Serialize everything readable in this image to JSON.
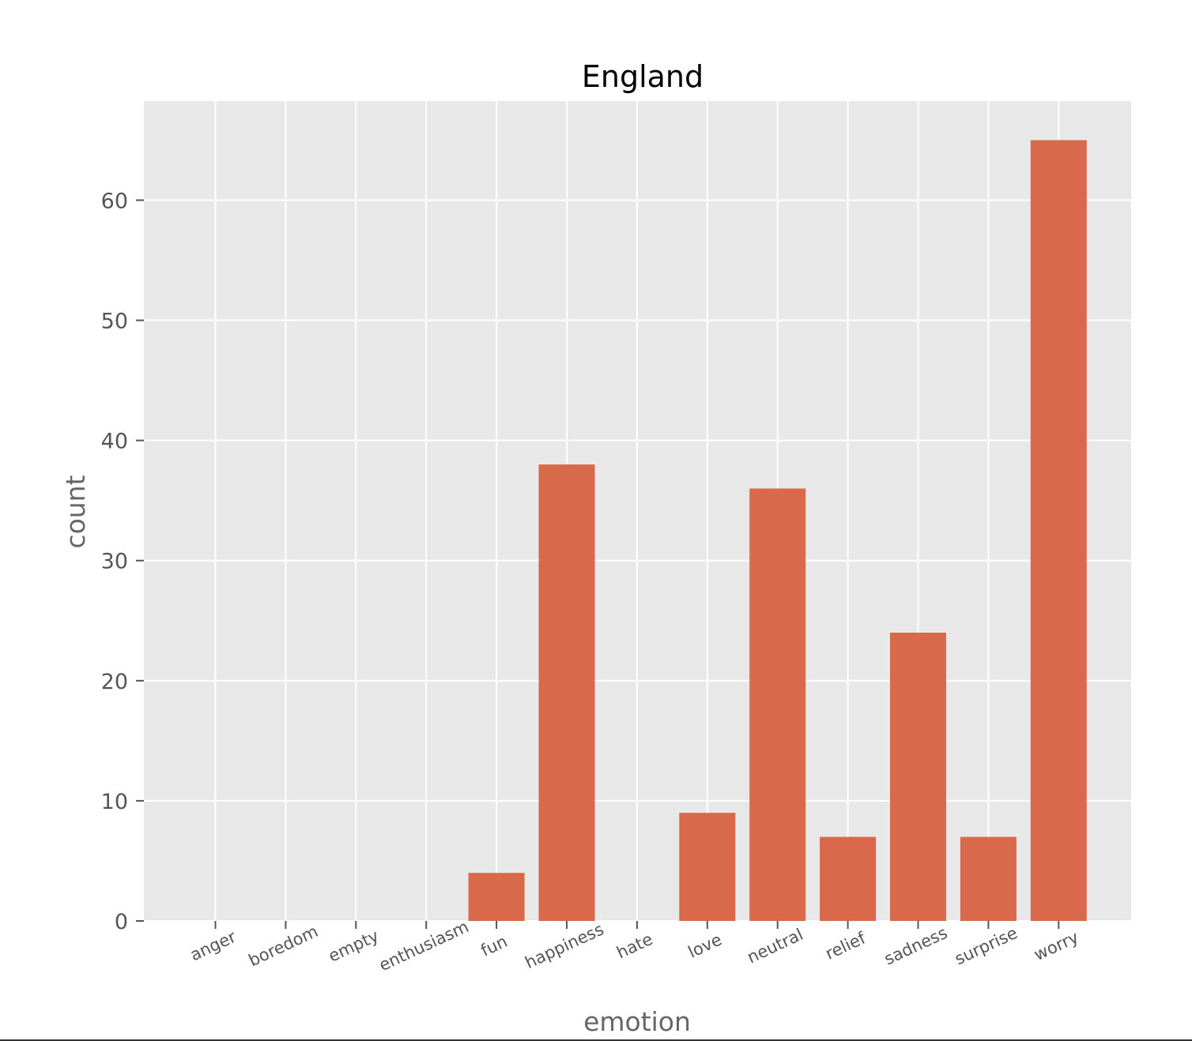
{
  "chart_data": {
    "type": "bar",
    "title": "England",
    "xlabel": "emotion",
    "ylabel": "count",
    "categories": [
      "anger",
      "boredom",
      "empty",
      "enthusiasm",
      "fun",
      "happiness",
      "hate",
      "love",
      "neutral",
      "relief",
      "sadness",
      "surprise",
      "worry"
    ],
    "values": [
      0,
      0,
      0,
      0,
      4,
      38,
      0,
      9,
      36,
      7,
      24,
      7,
      65
    ],
    "ylim": [
      0,
      68.25
    ],
    "yticks": [
      0,
      10,
      20,
      30,
      40,
      50,
      60
    ],
    "grid": true,
    "style": "ggplot",
    "colors": {
      "bar": "#d9694b",
      "plot_background": "#e8e8e8",
      "grid": "#ffffff",
      "tick_text": "#555555",
      "label_text": "#666666",
      "title_text": "#000000"
    }
  }
}
